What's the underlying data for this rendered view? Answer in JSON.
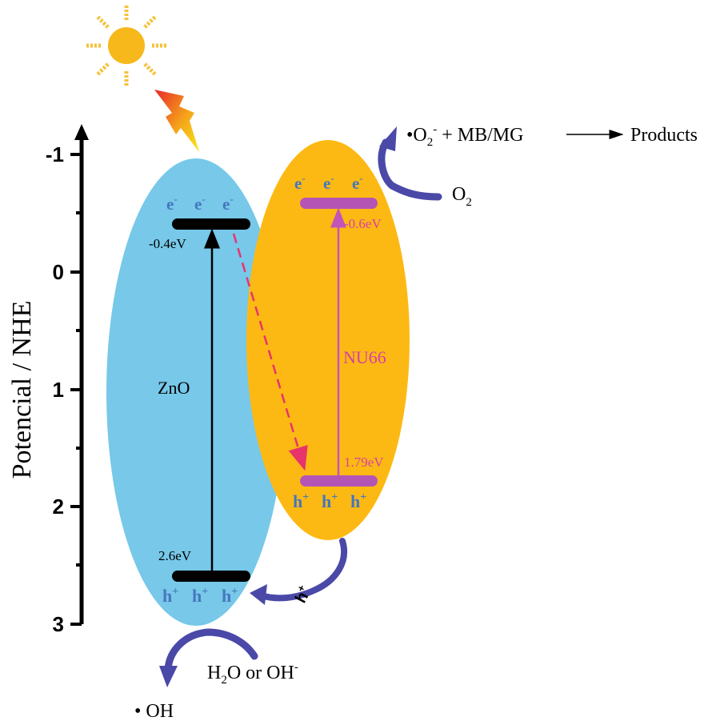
{
  "axis": {
    "label": "Potencial / NHE",
    "ticks": [
      "-1",
      "0",
      "1",
      "2",
      "3"
    ],
    "tick_values": [
      -1,
      0,
      1,
      2,
      3
    ]
  },
  "zno": {
    "name": "ZnO",
    "cb_label": "-0.4eV",
    "vb_label": "2.6eV",
    "cb_value": -0.4,
    "vb_value": 2.6,
    "electrons": [
      "e",
      "e",
      "e"
    ],
    "holes": [
      "h",
      "h",
      "h"
    ],
    "color": "#77c8e9"
  },
  "nu66": {
    "name": "NU66",
    "cb_label": "-0.6eV",
    "vb_label": "1.79eV",
    "cb_value": -0.6,
    "vb_value": 1.79,
    "electrons": [
      "e",
      "e",
      "e"
    ],
    "holes": [
      "h",
      "h",
      "h"
    ],
    "color": "#fdb913"
  },
  "reactions": {
    "superoxide_product": "O",
    "superoxide_sub": "2",
    "superoxide_sup": "-",
    "superoxide_rest": " + MB/MG",
    "products": "Products",
    "oxygen": "O",
    "oxygen_sub": "2",
    "water_h": "H",
    "water_sub": "2",
    "water_rest": "O or OH",
    "water_sup": "-",
    "hydroxyl": "• OH",
    "hole_transfer": "h",
    "hole_transfer_sup": "+",
    "bullet": "•"
  },
  "charge_signs": {
    "minus": "-",
    "plus": "+"
  },
  "colors": {
    "band_black": "#000000",
    "band_magenta": "#b455b6",
    "transfer_arrow": "#e8336b",
    "nu66_text": "#d63fa8",
    "carrier_blue": "#4577bd",
    "curve_arrow": "#4a49a8"
  }
}
